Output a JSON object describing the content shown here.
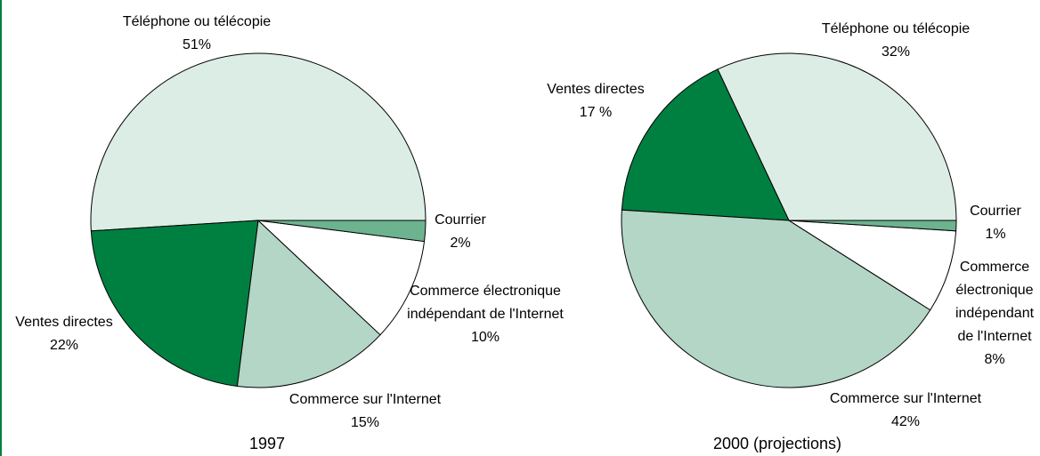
{
  "chart_data": [
    {
      "type": "pie",
      "title": "1997",
      "categories": [
        "Téléphone ou télécopie",
        "Ventes directes",
        "Commerce sur l'Internet",
        "Commerce électronique indépendant de l'Internet",
        "Courrier"
      ],
      "values": [
        51,
        22,
        15,
        10,
        2
      ],
      "value_labels": [
        "51%",
        "22%",
        "15%",
        "10%",
        "2%"
      ],
      "colors": [
        "#dcede5",
        "#008040",
        "#b3d6c6",
        "#ffffff",
        "#6db390"
      ]
    },
    {
      "type": "pie",
      "title": "2000 (projections)",
      "categories": [
        "Téléphone ou télécopie",
        "Ventes directes",
        "Commerce sur l'Internet",
        "Commerce électronique indépendant de l'Internet",
        "Courrier"
      ],
      "values": [
        32,
        17,
        42,
        8,
        1
      ],
      "value_labels": [
        "32%",
        "17 %",
        "42%",
        "8%",
        "1%"
      ],
      "colors": [
        "#dcede5",
        "#008040",
        "#b3d6c6",
        "#ffffff",
        "#6db390"
      ]
    }
  ]
}
